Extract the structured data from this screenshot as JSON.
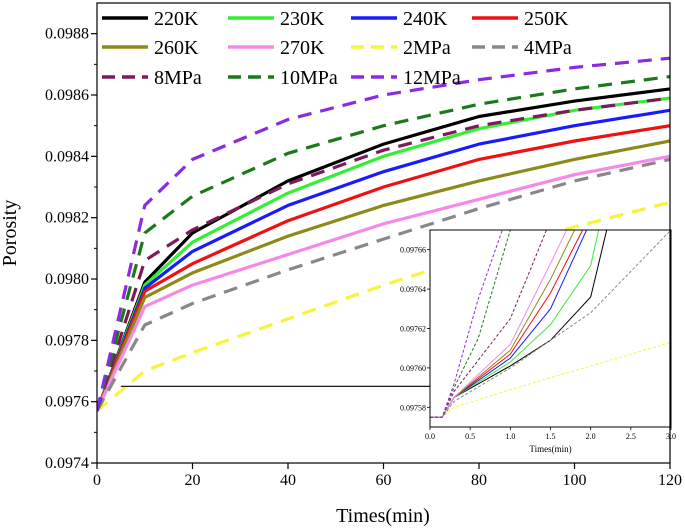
{
  "chart_data": {
    "type": "line",
    "xlabel": "Times(min)",
    "ylabel": "Porosity",
    "xlim": [
      0,
      120
    ],
    "ylim": [
      0.0974,
      0.0989
    ],
    "x_ticks": [
      "0",
      "20",
      "40",
      "60",
      "80",
      "100",
      "120"
    ],
    "y_ticks": [
      "0.0974",
      "0.0976",
      "0.0978",
      "0.0980",
      "0.0982",
      "0.0984",
      "0.0986",
      "0.0988"
    ],
    "x_tick_values": [
      0,
      20,
      40,
      60,
      80,
      100,
      120
    ],
    "y_tick_values": [
      0.0974,
      0.0976,
      0.0978,
      0.098,
      0.0982,
      0.0984,
      0.0986,
      0.0988
    ],
    "series": [
      {
        "name": "220K",
        "color": "#000000",
        "dash": "solid",
        "points": [
          [
            0,
            0.09757
          ],
          [
            10,
            0.09799
          ],
          [
            20,
            0.09815
          ],
          [
            40,
            0.09832
          ],
          [
            60,
            0.09844
          ],
          [
            80,
            0.09853
          ],
          [
            100,
            0.09858
          ],
          [
            120,
            0.09862
          ]
        ]
      },
      {
        "name": "230K",
        "color": "#33ee33",
        "dash": "solid",
        "points": [
          [
            0,
            0.09757
          ],
          [
            10,
            0.09798
          ],
          [
            20,
            0.09812
          ],
          [
            40,
            0.09828
          ],
          [
            60,
            0.0984
          ],
          [
            80,
            0.09849
          ],
          [
            100,
            0.09855
          ],
          [
            120,
            0.09859
          ]
        ]
      },
      {
        "name": "240K",
        "color": "#1a1aff",
        "dash": "solid",
        "points": [
          [
            0,
            0.09757
          ],
          [
            10,
            0.09797
          ],
          [
            20,
            0.09809
          ],
          [
            40,
            0.09824
          ],
          [
            60,
            0.09835
          ],
          [
            80,
            0.09844
          ],
          [
            100,
            0.0985
          ],
          [
            120,
            0.09855
          ]
        ]
      },
      {
        "name": "250K",
        "color": "#ee1111",
        "dash": "solid",
        "points": [
          [
            0,
            0.09757
          ],
          [
            10,
            0.09796
          ],
          [
            20,
            0.09805
          ],
          [
            40,
            0.09819
          ],
          [
            60,
            0.0983
          ],
          [
            80,
            0.09839
          ],
          [
            100,
            0.09845
          ],
          [
            120,
            0.0985
          ]
        ]
      },
      {
        "name": "260K",
        "color": "#8c8a18",
        "dash": "solid",
        "points": [
          [
            0,
            0.09757
          ],
          [
            10,
            0.09794
          ],
          [
            20,
            0.09802
          ],
          [
            40,
            0.09814
          ],
          [
            60,
            0.09824
          ],
          [
            80,
            0.09832
          ],
          [
            100,
            0.09839
          ],
          [
            120,
            0.09845
          ]
        ]
      },
      {
        "name": "270K",
        "color": "#f588e8",
        "dash": "solid",
        "points": [
          [
            0,
            0.09757
          ],
          [
            10,
            0.09791
          ],
          [
            20,
            0.09798
          ],
          [
            40,
            0.09808
          ],
          [
            60,
            0.09818
          ],
          [
            80,
            0.09826
          ],
          [
            100,
            0.09834
          ],
          [
            120,
            0.0984
          ]
        ]
      },
      {
        "name": "2MPa",
        "color": "#f5f53a",
        "dash": "dashed",
        "points": [
          [
            0,
            0.09757
          ],
          [
            10,
            0.0977
          ],
          [
            20,
            0.09776
          ],
          [
            40,
            0.09787
          ],
          [
            60,
            0.09798
          ],
          [
            80,
            0.09808
          ],
          [
            100,
            0.09817
          ],
          [
            120,
            0.09825
          ]
        ]
      },
      {
        "name": "4MPa",
        "color": "#888888",
        "dash": "dashed",
        "points": [
          [
            0,
            0.09757
          ],
          [
            10,
            0.09785
          ],
          [
            20,
            0.09792
          ],
          [
            40,
            0.09803
          ],
          [
            60,
            0.09813
          ],
          [
            80,
            0.09823
          ],
          [
            100,
            0.09832
          ],
          [
            120,
            0.09839
          ]
        ]
      },
      {
        "name": "8MPa",
        "color": "#7d1a5a",
        "dash": "dashed",
        "points": [
          [
            0,
            0.09757
          ],
          [
            10,
            0.09806
          ],
          [
            20,
            0.09816
          ],
          [
            40,
            0.09831
          ],
          [
            60,
            0.09842
          ],
          [
            80,
            0.0985
          ],
          [
            100,
            0.09855
          ],
          [
            120,
            0.09859
          ]
        ]
      },
      {
        "name": "10MPa",
        "color": "#1a7a1a",
        "dash": "dashed",
        "points": [
          [
            0,
            0.09757
          ],
          [
            10,
            0.09815
          ],
          [
            20,
            0.09827
          ],
          [
            40,
            0.09841
          ],
          [
            60,
            0.0985
          ],
          [
            80,
            0.09857
          ],
          [
            100,
            0.09862
          ],
          [
            120,
            0.09866
          ]
        ]
      },
      {
        "name": "12MPa",
        "color": "#8a2be2",
        "dash": "dashed",
        "points": [
          [
            0,
            0.09757
          ],
          [
            10,
            0.09824
          ],
          [
            20,
            0.09839
          ],
          [
            40,
            0.09852
          ],
          [
            60,
            0.0986
          ],
          [
            80,
            0.09865
          ],
          [
            100,
            0.09869
          ],
          [
            120,
            0.09872
          ]
        ]
      }
    ],
    "legend": {
      "placement": "top-left",
      "columns": 4
    },
    "annotation": {
      "from": [
        5,
        0.09765
      ],
      "to": [
        100,
        0.09765
      ],
      "type": "arrow"
    },
    "inset": {
      "xlabel": "Times(min)",
      "xlim": [
        0,
        3.0
      ],
      "ylim": [
        0.09757,
        0.09767
      ],
      "x_ticks": [
        "0.0",
        "0.5",
        "1.0",
        "1.5",
        "2.0",
        "2.5",
        "3.0"
      ],
      "y_ticks": [
        "0.09758",
        "0.09760",
        "0.09762",
        "0.09764",
        "0.09766"
      ],
      "x_tick_values": [
        0,
        0.5,
        1.0,
        1.5,
        2.0,
        2.5,
        3.0
      ],
      "y_tick_values": [
        0.09758,
        0.0976,
        0.09762,
        0.09764,
        0.09766
      ],
      "series": [
        {
          "name": "220K",
          "points": [
            [
              0,
              0.097575
            ],
            [
              0.15,
              0.097575
            ],
            [
              0.3,
              0.097585
            ],
            [
              1.0,
              0.097601
            ],
            [
              1.5,
              0.097614
            ],
            [
              2.0,
              0.097636
            ],
            [
              2.2,
              0.09767
            ]
          ]
        },
        {
          "name": "230K",
          "points": [
            [
              0,
              0.097575
            ],
            [
              0.15,
              0.097575
            ],
            [
              0.3,
              0.097585
            ],
            [
              1.0,
              0.097603
            ],
            [
              1.5,
              0.097622
            ],
            [
              2.0,
              0.097652
            ],
            [
              2.1,
              0.09767
            ]
          ]
        },
        {
          "name": "240K",
          "points": [
            [
              0,
              0.097575
            ],
            [
              0.15,
              0.097575
            ],
            [
              0.3,
              0.097585
            ],
            [
              1.0,
              0.097605
            ],
            [
              1.5,
              0.09763
            ],
            [
              1.95,
              0.09767
            ]
          ]
        },
        {
          "name": "250K",
          "points": [
            [
              0,
              0.097575
            ],
            [
              0.15,
              0.097575
            ],
            [
              0.3,
              0.097585
            ],
            [
              1.0,
              0.097607
            ],
            [
              1.5,
              0.097638
            ],
            [
              1.9,
              0.09767
            ]
          ]
        },
        {
          "name": "260K",
          "points": [
            [
              0,
              0.097575
            ],
            [
              0.15,
              0.097575
            ],
            [
              0.3,
              0.097585
            ],
            [
              1.0,
              0.097609
            ],
            [
              1.5,
              0.097645
            ],
            [
              1.8,
              0.09767
            ]
          ]
        },
        {
          "name": "270K",
          "points": [
            [
              0,
              0.097575
            ],
            [
              0.15,
              0.097575
            ],
            [
              0.3,
              0.097585
            ],
            [
              1.0,
              0.097612
            ],
            [
              1.5,
              0.097653
            ],
            [
              1.7,
              0.09767
            ]
          ]
        },
        {
          "name": "2MPa",
          "points": [
            [
              0,
              0.097575
            ],
            [
              0.15,
              0.097575
            ],
            [
              0.3,
              0.09758
            ],
            [
              1.0,
              0.097589
            ],
            [
              2.0,
              0.097601
            ],
            [
              3.0,
              0.097613
            ]
          ]
        },
        {
          "name": "4MPa",
          "points": [
            [
              0,
              0.097575
            ],
            [
              0.15,
              0.097575
            ],
            [
              0.3,
              0.097583
            ],
            [
              1.0,
              0.0976
            ],
            [
              2.0,
              0.097628
            ],
            [
              3.0,
              0.09767
            ]
          ]
        },
        {
          "name": "8MPa",
          "points": [
            [
              0,
              0.097575
            ],
            [
              0.15,
              0.097575
            ],
            [
              0.3,
              0.097588
            ],
            [
              1.0,
              0.097625
            ],
            [
              1.45,
              0.09767
            ]
          ]
        },
        {
          "name": "10MPa",
          "points": [
            [
              0,
              0.097575
            ],
            [
              0.15,
              0.097575
            ],
            [
              0.3,
              0.09759
            ],
            [
              0.6,
              0.097615
            ],
            [
              1.0,
              0.09767
            ]
          ]
        },
        {
          "name": "12MPa",
          "points": [
            [
              0,
              0.097575
            ],
            [
              0.15,
              0.097575
            ],
            [
              0.3,
              0.097592
            ],
            [
              0.6,
              0.097635
            ],
            [
              0.9,
              0.09767
            ]
          ]
        }
      ]
    }
  }
}
